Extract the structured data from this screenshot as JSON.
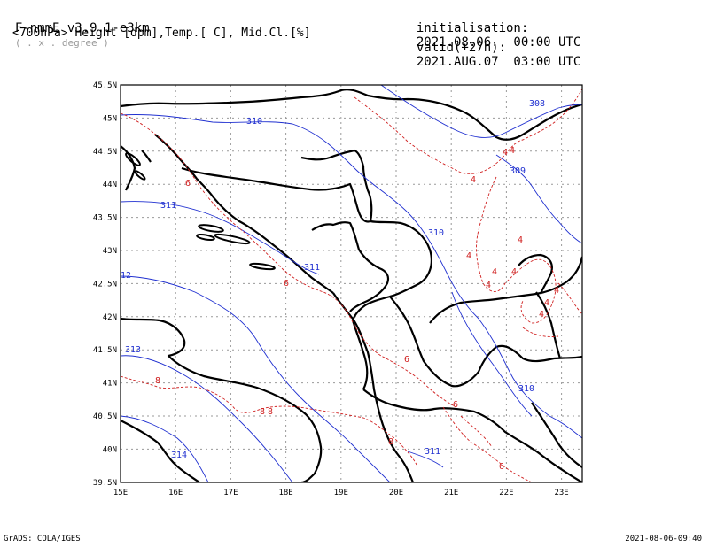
{
  "header": {
    "model": "F-nmmE_v3.9.1-e3km",
    "grid": "( . x . degree )",
    "fields": "<700hPa> Height [dpm],Temp.[ C], Mid.Cl.[%]",
    "init_label": "initialisation:",
    "init_value": "2021.08.06.  00:00 UTC",
    "valid_label": "valid(+27h):",
    "valid_value": "2021.AUG.07  03:00 UTC"
  },
  "footer": {
    "left": "GrADS: COLA/IGES",
    "right": "2021-08-06-09:40"
  },
  "map": {
    "lon_labels": [
      "15E",
      "16E",
      "17E",
      "18E",
      "19E",
      "20E",
      "21E",
      "22E",
      "23E"
    ],
    "lat_labels": [
      "45.5N",
      "45N",
      "44.5N",
      "44N",
      "43.5N",
      "43N",
      "42.5N",
      "42N",
      "41.5N",
      "41N",
      "40.5N",
      "40N",
      "39.5N"
    ],
    "colors": {
      "height": "#2030d0",
      "temperature": "#d02020",
      "border": "#000000",
      "grid": "#9a9a9a"
    },
    "height_labels": [
      "310",
      "308",
      "309",
      "311",
      "310",
      "311",
      "12",
      "313",
      "310",
      "314",
      "311"
    ],
    "temp_labels": [
      "6",
      "4",
      "4",
      "4",
      "4",
      "4",
      "4",
      "4",
      "4",
      "4",
      "4",
      "4",
      "6",
      "6",
      "8",
      "8",
      "8",
      "6",
      "8",
      "6"
    ]
  }
}
